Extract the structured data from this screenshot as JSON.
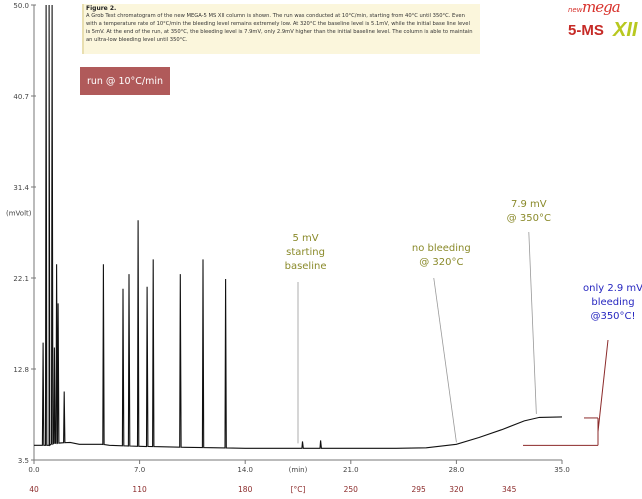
{
  "caption": {
    "title": "Figure 2.",
    "text": "A Grob Test chromatogram of the new MEGA-5 MS XII column is shown. The run was conducted at 10°C/min, starting from 40°C until 350°C. Even with a temperature rate of 10°C/min the bleeding level remains extremely low. At 320°C the baseline level is 5.1mV, while the initial base line level is 5mV. At the end of the run, at 350°C, the bleeding level is 7.9mV, only 2.9mV higher than the initial baseline level. The column is able to maintain an ultra-low bleeding level until 350°C."
  },
  "run_label": "run @ 10°C/min",
  "logo": {
    "new": "new",
    "mega": "mega",
    "model": "5-MS",
    "suffix": "XII"
  },
  "colors": {
    "trace": "#111111",
    "olive": "#8a8a2a",
    "blue": "#2727c0",
    "maroon": "#8b2a2a",
    "badge": "#b05a5a",
    "axis": "#777777"
  },
  "chart_data": {
    "type": "line",
    "xlabel": "(min)",
    "x2label": "[°C]",
    "ylabel": "(mVolt)",
    "xlim": [
      0,
      35
    ],
    "ylim": [
      3.5,
      50.0
    ],
    "yticks": [
      "3.5",
      "12.8",
      "22.1",
      "31.4",
      "40.7",
      "50.0"
    ],
    "xticks": [
      "0.0",
      "7.0",
      "14.0",
      "21.0",
      "28.0",
      "35.0"
    ],
    "x2ticks": [
      "40",
      "110",
      "180",
      "250",
      "295",
      "320",
      "345"
    ],
    "x2tick_positions": [
      0,
      7,
      14,
      21,
      25.5,
      28,
      31.5
    ],
    "series": [
      {
        "baseline": [
          [
            0.0,
            5.0
          ],
          [
            1.0,
            5.0
          ],
          [
            1.3,
            5.2
          ],
          [
            2.4,
            5.3
          ],
          [
            3.0,
            5.1
          ],
          [
            4.5,
            5.1
          ],
          [
            5.0,
            5.0
          ],
          [
            7.0,
            4.9
          ],
          [
            10.0,
            4.8
          ],
          [
            14.0,
            4.7
          ],
          [
            18.0,
            4.7
          ],
          [
            21.0,
            4.7
          ],
          [
            24.0,
            4.7
          ],
          [
            26.0,
            4.75
          ],
          [
            28.0,
            5.1
          ],
          [
            29.5,
            5.8
          ],
          [
            31.0,
            6.6
          ],
          [
            32.5,
            7.5
          ],
          [
            33.5,
            7.85
          ],
          [
            35.0,
            7.9
          ]
        ],
        "peaks": [
          {
            "x": 0.6,
            "y": 15.5
          },
          {
            "x": 0.8,
            "y": 50.0
          },
          {
            "x": 1.0,
            "y": 50.0
          },
          {
            "x": 1.2,
            "y": 50.0
          },
          {
            "x": 1.35,
            "y": 15.0
          },
          {
            "x": 1.5,
            "y": 23.5
          },
          {
            "x": 1.6,
            "y": 19.5
          },
          {
            "x": 2.0,
            "y": 10.5
          },
          {
            "x": 4.6,
            "y": 23.5
          },
          {
            "x": 5.9,
            "y": 21.0
          },
          {
            "x": 6.3,
            "y": 22.5
          },
          {
            "x": 6.9,
            "y": 28.0
          },
          {
            "x": 7.5,
            "y": 21.2
          },
          {
            "x": 7.9,
            "y": 24.0
          },
          {
            "x": 9.7,
            "y": 22.5
          },
          {
            "x": 11.2,
            "y": 24.0
          },
          {
            "x": 12.7,
            "y": 22.0
          },
          {
            "x": 17.8,
            "y": 5.4
          },
          {
            "x": 19.0,
            "y": 5.5
          }
        ]
      }
    ],
    "annotations": [
      {
        "text": [
          "5 mV",
          "starting",
          "baseline"
        ],
        "x": 17.5,
        "y": 5.0,
        "color": "olive"
      },
      {
        "text": [
          "no bleeding",
          "@ 320°C"
        ],
        "x": 28.0,
        "y": 5.1,
        "color": "olive"
      },
      {
        "text": [
          "7.9 mV",
          "@ 350°C"
        ],
        "x": 33.0,
        "y": 7.9,
        "color": "olive"
      },
      {
        "text": [
          "only 2.9 mV",
          "bleeding",
          "@350°C!"
        ],
        "x": 35.0,
        "y": 6.5,
        "color": "blue"
      }
    ]
  }
}
